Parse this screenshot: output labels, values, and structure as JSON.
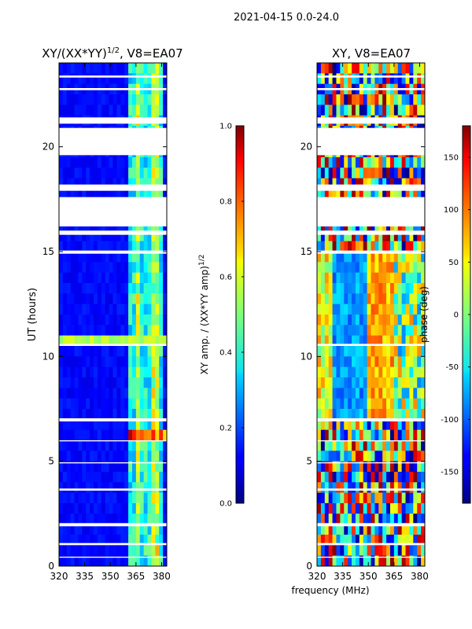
{
  "figure": {
    "suptitle": "2021-04-15 0.0-24.0",
    "shared_xlabel": "frequency (MHz)"
  },
  "chart_data": [
    {
      "type": "heatmap",
      "id": "amp",
      "title": "XY/(XX*YY)",
      "title_sup": "1/2",
      "title_suffix": ", V8=EA07",
      "ylabel": "UT (hours)",
      "xlabel": "",
      "xlim": [
        320,
        383
      ],
      "ylim": [
        0,
        24
      ],
      "xticks": [
        320,
        335,
        350,
        365,
        380
      ],
      "yticks": [
        0,
        5,
        10,
        15,
        20
      ],
      "colorbar": {
        "label": "XY amp. / (XX*YY amp)",
        "label_sup": "1/2",
        "range": [
          0.0,
          1.0
        ],
        "ticks": [
          "0.0",
          "0.2",
          "0.4",
          "0.6",
          "0.8",
          "1.0"
        ],
        "colormap": "jet"
      }
    },
    {
      "type": "heatmap",
      "id": "phase",
      "title": "XY, V8=EA07",
      "ylabel": "",
      "xlabel": "frequency (MHz)",
      "xlim": [
        320,
        383
      ],
      "ylim": [
        0,
        24
      ],
      "xticks": [
        320,
        335,
        350,
        365,
        380
      ],
      "yticks": [
        0,
        5,
        10,
        15,
        20
      ],
      "colorbar": {
        "label": "phase (deg)",
        "range": [
          -180,
          180
        ],
        "ticks": [
          "-150",
          "-100",
          "-50",
          "0",
          "50",
          "100",
          "150"
        ],
        "tick_values": [
          -150,
          -100,
          -50,
          0,
          50,
          100,
          150
        ],
        "colormap": "jet"
      }
    }
  ],
  "data_gaps_hours": [
    [
      15.8,
      16.0
    ],
    [
      16.2,
      17.6
    ],
    [
      17.9,
      18.2
    ],
    [
      19.6,
      20.9
    ],
    [
      21.1,
      21.4
    ],
    [
      22.7,
      22.8
    ],
    [
      23.3,
      23.4
    ],
    [
      14.9,
      15.05
    ],
    [
      10.5,
      10.6
    ],
    [
      6.9,
      7.05
    ],
    [
      5.95,
      6.0
    ],
    [
      4.9,
      4.95
    ],
    [
      3.6,
      3.7
    ],
    [
      1.9,
      2.05
    ],
    [
      1.0,
      1.1
    ],
    [
      0.4,
      0.45
    ]
  ]
}
